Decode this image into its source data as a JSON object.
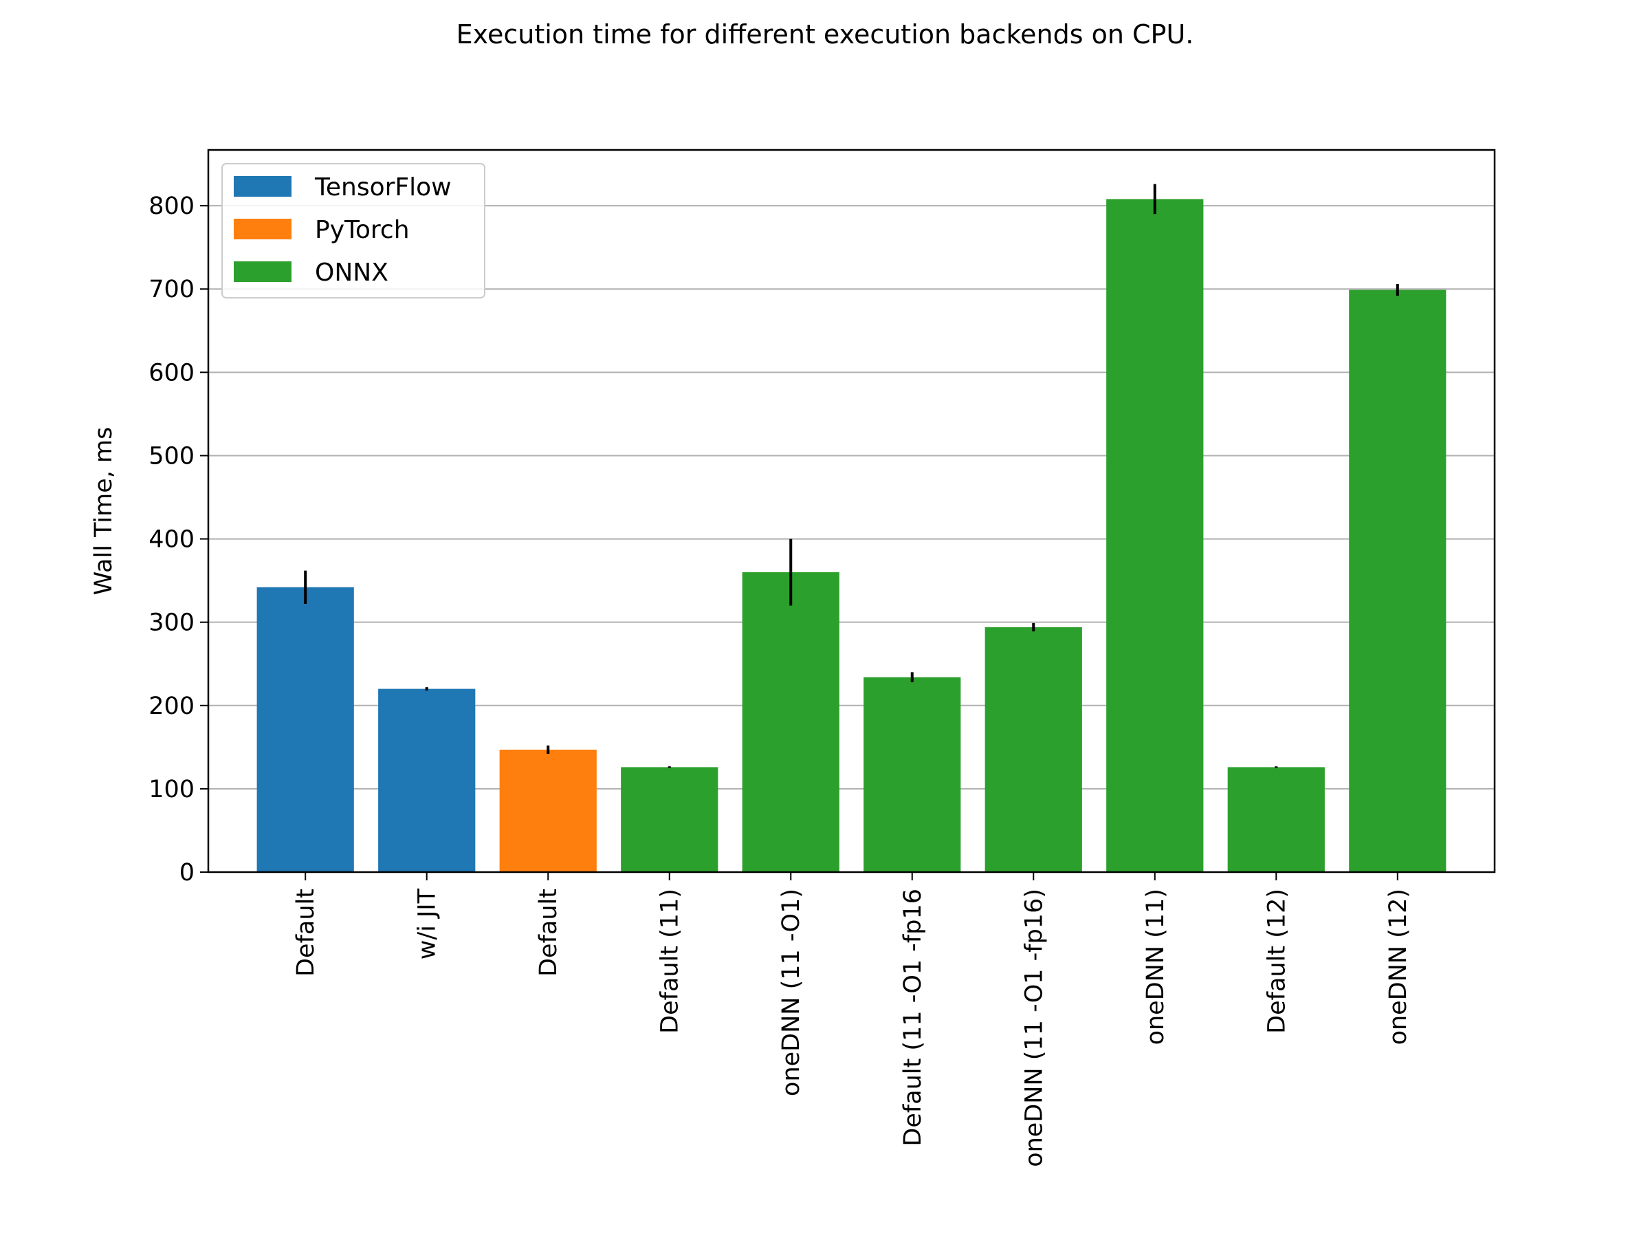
{
  "chart_data": {
    "type": "bar",
    "title": "Execution time for different execution backends on CPU.",
    "xlabel": "",
    "ylabel": "Wall Time, ms",
    "ylim": [
      0,
      867
    ],
    "yticks": [
      0,
      100,
      200,
      300,
      400,
      500,
      600,
      700,
      800
    ],
    "grid": "y",
    "legend_position": "top-left",
    "categories": [
      "Default",
      "w/i JIT",
      "Default",
      "Default (11)",
      "oneDNN (11 -O1)",
      "Default (11 -O1 -fp16",
      "oneDNN (11 -O1 -fp16)",
      "oneDNN (11)",
      "Default (12)",
      "oneDNN (12)"
    ],
    "values": [
      342,
      220,
      147,
      126,
      360,
      234,
      294,
      808,
      126,
      699
    ],
    "errors": [
      20,
      2,
      5,
      1,
      40,
      6,
      5,
      18,
      1,
      7
    ],
    "groups": [
      "TensorFlow",
      "TensorFlow",
      "PyTorch",
      "ONNX",
      "ONNX",
      "ONNX",
      "ONNX",
      "ONNX",
      "ONNX",
      "ONNX"
    ],
    "series": [
      {
        "name": "TensorFlow",
        "color": "#1f77b4"
      },
      {
        "name": "PyTorch",
        "color": "#ff7f0e"
      },
      {
        "name": "ONNX",
        "color": "#2ca02c"
      }
    ]
  }
}
